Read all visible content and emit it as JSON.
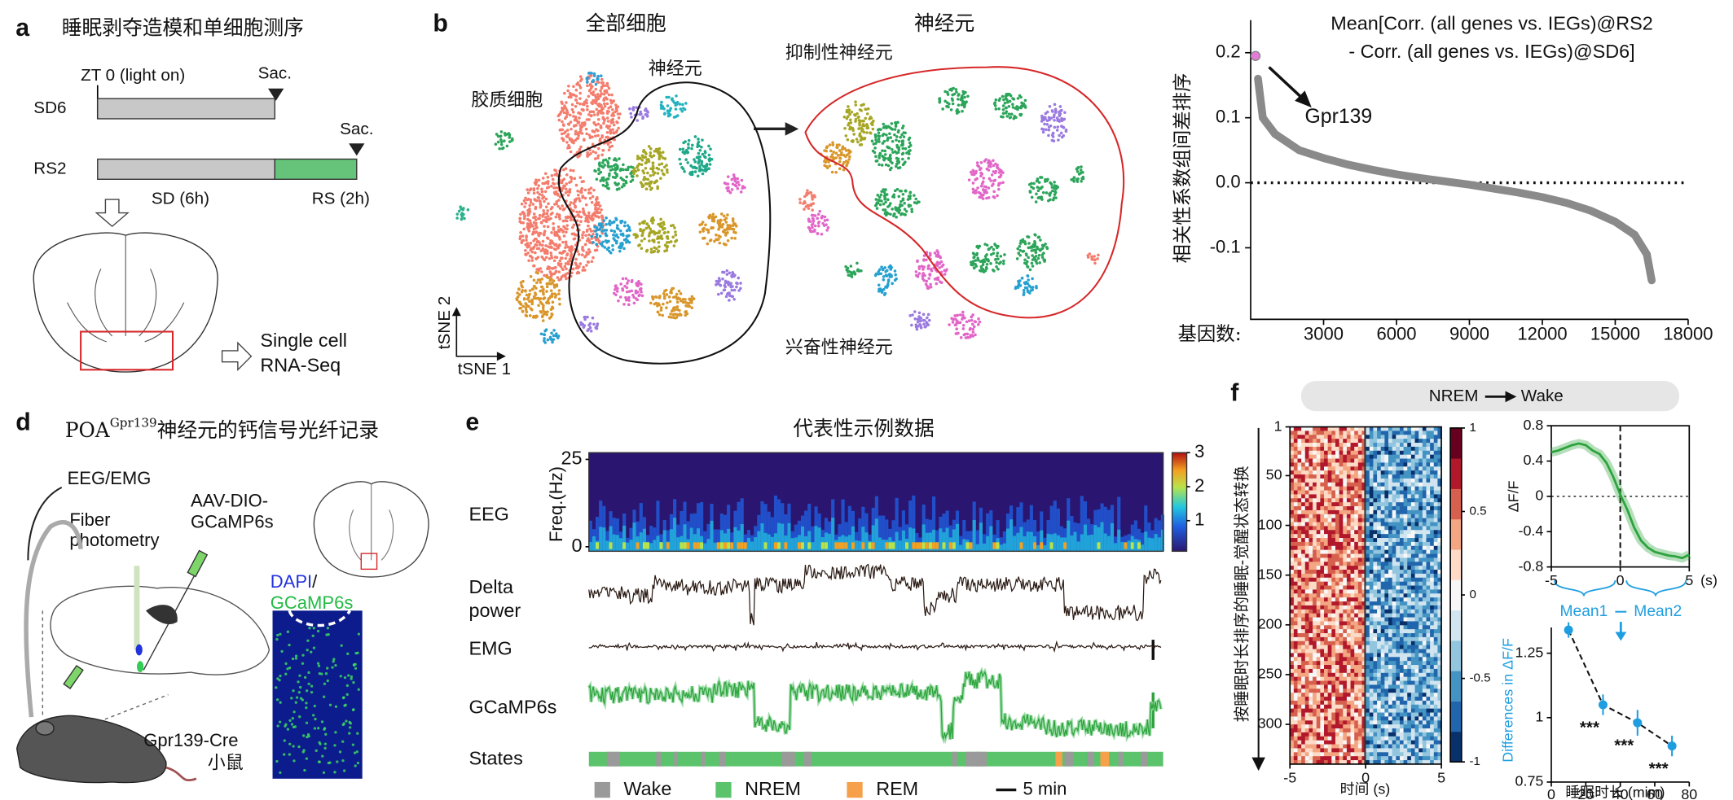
{
  "panel_a": {
    "label": "a",
    "title": "睡眠剥夺造模和单细胞测序",
    "zt": "ZT 0 (light on)",
    "sac_sd6": "Sac.",
    "sac_rs2": "Sac.",
    "group_sd6": "SD6",
    "group_rs2": "RS2",
    "sd_phase": "SD (6h)",
    "rs_phase": "RS (2h)",
    "output": [
      "Single cell",
      "RNA-Seq"
    ]
  },
  "panel_b": {
    "label": "b",
    "title_all": "全部细胞",
    "title_neuron": "神经元",
    "glia": "胶质细胞",
    "neurons": "神经元",
    "inhibitory": "抑制性神经元",
    "excitatory": "兴奋性神经元",
    "axis_x": "tSNE 1",
    "axis_y": "tSNE 2"
  },
  "panel_d": {
    "label": "d",
    "title_prefix": "POA",
    "title_sup": "Gpr139",
    "title_suffix": "神经元的钙信号光纤记录",
    "eeg_emg": "EEG/EMG",
    "fiber": [
      "Fiber",
      "photometry"
    ],
    "virus": [
      "AAV-DIO-",
      "GCaMP6s"
    ],
    "stain_dapi": "DAPI",
    "stain_sep": "/",
    "stain_gcamp": "GCaMP6s",
    "mouse": [
      "Gpr139-Cre",
      "小鼠"
    ]
  },
  "panel_e": {
    "label": "e",
    "title": "代表性示例数据",
    "rows": [
      "EEG",
      "Delta",
      "power",
      "EMG",
      "GCaMP6s",
      "States"
    ],
    "legend": [
      {
        "name": "Wake",
        "color": "#9a9a9a"
      },
      {
        "name": "NREM",
        "color": "#5cc36d"
      },
      {
        "name": "REM",
        "color": "#f7a04a"
      }
    ],
    "scale_bar": "5 min"
  },
  "panel_f": {
    "label": "f",
    "transition_from": "NREM",
    "transition_to": "Wake",
    "mean1": "Mean1",
    "mean2": "Mean2"
  },
  "chart_data": [
    {
      "type": "line",
      "title": [
        "Mean[Corr. (all genes vs. IEGs)@RS2",
        "- Corr. (all genes vs. IEGs)@SD6]"
      ],
      "y_label": "相关性系数组间差排序",
      "x_label": "基因数:",
      "x": [
        300,
        500,
        1000,
        2000,
        3000,
        4000,
        5000,
        6000,
        7000,
        8000,
        9000,
        10000,
        11000,
        12000,
        13000,
        14000,
        15000,
        15800,
        16300,
        16500
      ],
      "series": [
        {
          "color": "#8a8a8a",
          "values": [
            0.16,
            0.1,
            0.075,
            0.05,
            0.038,
            0.028,
            0.02,
            0.013,
            0.007,
            0.002,
            -0.003,
            -0.009,
            -0.015,
            -0.022,
            -0.031,
            -0.043,
            -0.06,
            -0.08,
            -0.11,
            -0.15
          ]
        }
      ],
      "highlight": {
        "name": "Gpr139",
        "x": 200,
        "y": 0.195,
        "color": "#e57bd8"
      },
      "hline": 0,
      "xlim": [
        0,
        18000
      ],
      "ylim": [
        -0.21,
        0.25
      ],
      "xticks": [
        3000,
        6000,
        9000,
        12000,
        15000,
        18000
      ],
      "yticks": [
        -0.1,
        {
          "value": 0,
          "label": "0.0"
        },
        0.1,
        0.2
      ]
    },
    {
      "type": "heatmap",
      "y_label": "按睡眠时长排序的睡眠-觉醒状态转换",
      "x_label": "时间 (s)",
      "xlim": [
        -5,
        5
      ],
      "xticks": [
        -5,
        0,
        5
      ],
      "ylim": [
        1,
        340
      ],
      "yticks": [
        1,
        50,
        100,
        150,
        200,
        250,
        300
      ],
      "clim": [
        -1,
        1
      ],
      "cticks": [
        -1,
        -0.5,
        0,
        0.5,
        1
      ]
    },
    {
      "type": "line",
      "y_label": "ΔF/F",
      "x_unit": "(s)",
      "x": [
        -5,
        -4.5,
        -4,
        -3.5,
        -3,
        -2.5,
        -2,
        -1.5,
        -1,
        -0.5,
        0,
        0.5,
        1,
        1.5,
        2,
        2.5,
        3,
        3.5,
        4,
        4.5,
        5
      ],
      "series": [
        {
          "color": "#2ca33c",
          "values": [
            0.5,
            0.52,
            0.55,
            0.58,
            0.6,
            0.58,
            0.52,
            0.48,
            0.38,
            0.22,
            0.02,
            -0.15,
            -0.35,
            -0.5,
            -0.58,
            -0.63,
            -0.65,
            -0.67,
            -0.68,
            -0.7,
            -0.66
          ]
        }
      ],
      "xlim": [
        -5,
        5
      ],
      "xticks": [
        -5,
        0,
        5
      ],
      "ylim": [
        -0.8,
        0.8
      ],
      "yticks": [
        -0.8,
        -0.4,
        0,
        0.4,
        0.8
      ],
      "vline": 0,
      "hline": 0
    },
    {
      "type": "scatter",
      "y_label": "Differences in ΔF/F",
      "x_label": "睡眠时长 (mim)",
      "x": [
        10,
        30,
        50,
        70
      ],
      "series": [
        {
          "color": "#1e9ee0",
          "values": [
            1.34,
            1.05,
            0.98,
            0.89
          ],
          "errors": [
            0.03,
            0.04,
            0.05,
            0.04
          ]
        }
      ],
      "annotations": [
        null,
        "***",
        "***",
        "***"
      ],
      "xlim": [
        0,
        80
      ],
      "xticks": [
        0,
        20,
        40,
        60,
        80
      ],
      "ylim": [
        0.75,
        1.35
      ],
      "yticks": [
        0.75,
        1,
        1.25
      ]
    },
    {
      "type": "spectrogram",
      "y_label": "Freq.(Hz)",
      "ylim": [
        0,
        25
      ],
      "yticks": [
        0,
        25
      ],
      "clim": [
        0.1,
        3
      ],
      "cticks": [
        1,
        2,
        3
      ]
    }
  ]
}
